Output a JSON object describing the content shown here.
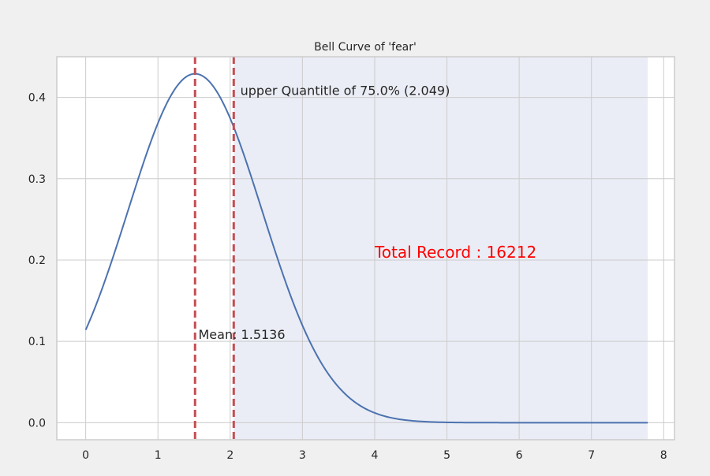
{
  "chart_data": {
    "type": "line",
    "title": "Bell Curve of 'fear'",
    "xlabel": "",
    "ylabel": "",
    "xlim": [
      -0.4,
      8.15
    ],
    "ylim": [
      -0.021,
      0.45
    ],
    "xticks": [
      0,
      1,
      2,
      3,
      4,
      5,
      6,
      7,
      8
    ],
    "yticks": [
      0.0,
      0.1,
      0.2,
      0.3,
      0.4
    ],
    "ytick_labels": [
      "0.0",
      "0.1",
      "0.2",
      "0.3",
      "0.4"
    ],
    "grid": true,
    "curve": {
      "distribution": "normal",
      "mean": 1.5136,
      "std": 0.9298,
      "x_range": [
        0,
        7.78
      ],
      "color": "#4c72b0"
    },
    "shaded_region": {
      "x_range": [
        2.049,
        7.78
      ],
      "color": "#eaedf5"
    },
    "vlines": [
      {
        "x": 1.5136,
        "color": "#c44e52",
        "style": "dashed"
      },
      {
        "x": 2.049,
        "color": "#c44e52",
        "style": "dashed"
      }
    ],
    "annotations": [
      {
        "text": "upper Quantitle of 75.0% (2.049)",
        "x": 2.14,
        "y": 0.403,
        "color": "#262626",
        "size": "medium"
      },
      {
        "text": "Mean: 1.5136",
        "x": 1.56,
        "y": 0.103,
        "color": "#262626",
        "size": "medium"
      },
      {
        "text": "Total Record : 16212",
        "x": 4.0,
        "y": 0.203,
        "color": "#ff0000",
        "size": "large"
      }
    ]
  }
}
